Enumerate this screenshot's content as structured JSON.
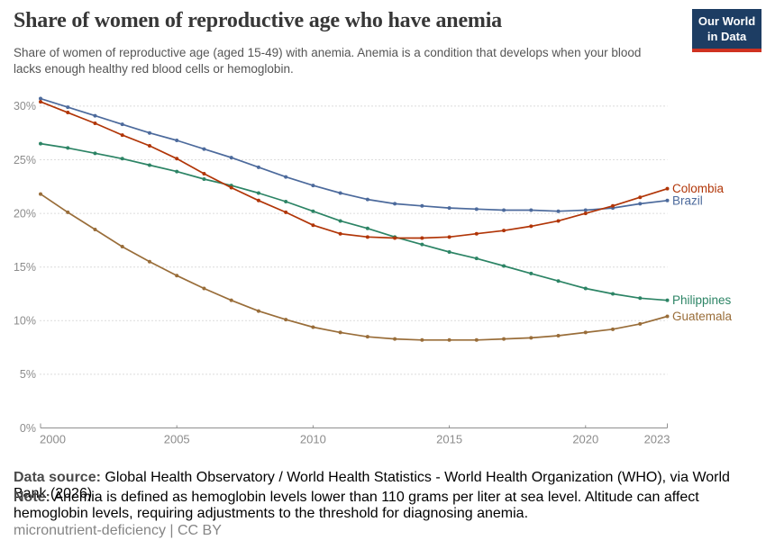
{
  "header": {
    "title": "Share of women of reproductive age who have anemia",
    "subtitle": "Share of women of reproductive age (aged 15-49) with anemia. Anemia is a condition that develops when your blood lacks enough healthy red blood cells or hemoglobin.",
    "logo": {
      "line1": "Our World",
      "line2": "in Data",
      "bg_color": "#1d3d63",
      "accent_color": "#cf3221"
    }
  },
  "chart_data": {
    "type": "line",
    "title": "Share of women of reproductive age who have anemia",
    "xlabel": "",
    "ylabel": "",
    "x": [
      2000,
      2001,
      2002,
      2003,
      2004,
      2005,
      2006,
      2007,
      2008,
      2009,
      2010,
      2011,
      2012,
      2013,
      2014,
      2015,
      2016,
      2017,
      2018,
      2019,
      2020,
      2021,
      2022,
      2023
    ],
    "series": [
      {
        "name": "Brazil",
        "color": "#4C6A9C",
        "values": [
          30.7,
          29.9,
          29.1,
          28.3,
          27.5,
          26.8,
          26.0,
          25.2,
          24.3,
          23.4,
          22.6,
          21.9,
          21.3,
          20.9,
          20.7,
          20.5,
          20.4,
          20.3,
          20.3,
          20.2,
          20.3,
          20.5,
          20.9,
          21.2
        ]
      },
      {
        "name": "Philippines",
        "color": "#2C8465",
        "values": [
          26.5,
          26.1,
          25.6,
          25.1,
          24.5,
          23.9,
          23.2,
          22.6,
          21.9,
          21.1,
          20.2,
          19.3,
          18.6,
          17.8,
          17.1,
          16.4,
          15.8,
          15.1,
          14.4,
          13.7,
          13.0,
          12.5,
          12.1,
          11.9
        ]
      },
      {
        "name": "Guatemala",
        "color": "#996D39",
        "values": [
          21.8,
          20.1,
          18.5,
          16.9,
          15.5,
          14.2,
          13.0,
          11.9,
          10.9,
          10.1,
          9.4,
          8.9,
          8.5,
          8.3,
          8.2,
          8.2,
          8.2,
          8.3,
          8.4,
          8.6,
          8.9,
          9.2,
          9.7,
          10.4
        ]
      },
      {
        "name": "Colombia",
        "color": "#B13507",
        "values": [
          30.4,
          29.4,
          28.4,
          27.3,
          26.3,
          25.1,
          23.7,
          22.4,
          21.2,
          20.1,
          18.9,
          18.1,
          17.8,
          17.7,
          17.7,
          17.8,
          18.1,
          18.4,
          18.8,
          19.3,
          20.0,
          20.7,
          21.5,
          22.3
        ]
      }
    ],
    "ylim": [
      0,
      31
    ],
    "y_ticks": [
      0,
      5,
      10,
      15,
      20,
      25,
      30
    ],
    "y_tick_suffix": "%",
    "x_ticks": [
      2000,
      2005,
      2010,
      2015,
      2020,
      2023
    ],
    "grid": "horizontal-dashed",
    "legend_position": "right-end-labels",
    "axis_color": "#8f8f8f",
    "grid_color": "#dcdcdc",
    "tick_label_color": "#8c8c8c"
  },
  "footer": {
    "data_source_label": "Data source:",
    "data_source": " Global Health Observatory / World Health Statistics - World Health Organization (WHO), via World Bank (2026)",
    "note_label": "Note:",
    "note": " Anemia is defined as hemoglobin levels lower than 110 grams per liter at sea level. Altitude can affect hemoglobin levels, requiring adjustments to the threshold for diagnosing anemia.",
    "license": "micronutrient-deficiency | CC BY"
  }
}
